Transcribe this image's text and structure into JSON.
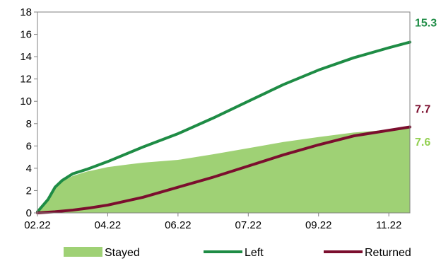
{
  "chart_data": {
    "type": "line",
    "x_tick_labels": [
      "02.22",
      "04.22",
      "06.22",
      "07.22",
      "09.22",
      "11.22"
    ],
    "y_ticks": [
      0,
      2,
      4,
      6,
      8,
      10,
      12,
      14,
      16,
      18
    ],
    "ylim": [
      0,
      18
    ],
    "x_range_months": [
      0,
      10.6
    ],
    "x_ticks_months": [
      0,
      2,
      4,
      6,
      8,
      10
    ],
    "series": [
      {
        "name": "Stayed",
        "kind": "area",
        "color": "#9FD175",
        "end_label": "7.6",
        "end_label_color": "#92D050",
        "points": [
          [
            0,
            0.1
          ],
          [
            0.3,
            1.2
          ],
          [
            0.5,
            2.2
          ],
          [
            0.7,
            2.8
          ],
          [
            1.0,
            3.3
          ],
          [
            1.4,
            3.7
          ],
          [
            2.0,
            4.1
          ],
          [
            2.6,
            4.35
          ],
          [
            3.0,
            4.5
          ],
          [
            4.0,
            4.75
          ],
          [
            5.0,
            5.25
          ],
          [
            6.0,
            5.8
          ],
          [
            7.0,
            6.35
          ],
          [
            8.0,
            6.8
          ],
          [
            9.0,
            7.2
          ],
          [
            10.0,
            7.45
          ],
          [
            10.6,
            7.6
          ]
        ]
      },
      {
        "name": "Left",
        "kind": "line",
        "color": "#1E8C45",
        "end_label": "15.3",
        "end_label_color": "#1E8C45",
        "points": [
          [
            0,
            0.1
          ],
          [
            0.3,
            1.2
          ],
          [
            0.5,
            2.3
          ],
          [
            0.7,
            2.9
          ],
          [
            1.0,
            3.5
          ],
          [
            1.4,
            3.9
          ],
          [
            2.0,
            4.6
          ],
          [
            3.0,
            5.9
          ],
          [
            4.0,
            7.1
          ],
          [
            5.0,
            8.5
          ],
          [
            6.0,
            10.0
          ],
          [
            7.0,
            11.5
          ],
          [
            8.0,
            12.8
          ],
          [
            9.0,
            13.9
          ],
          [
            10.0,
            14.8
          ],
          [
            10.6,
            15.3
          ]
        ]
      },
      {
        "name": "Returned",
        "kind": "line",
        "color": "#7B0E2E",
        "end_label": "7.7",
        "end_label_color": "#7B0E2E",
        "points": [
          [
            0,
            0.0
          ],
          [
            0.5,
            0.1
          ],
          [
            1.0,
            0.25
          ],
          [
            1.5,
            0.45
          ],
          [
            2.0,
            0.7
          ],
          [
            3.0,
            1.4
          ],
          [
            4.0,
            2.3
          ],
          [
            5.0,
            3.2
          ],
          [
            6.0,
            4.2
          ],
          [
            7.0,
            5.2
          ],
          [
            8.0,
            6.1
          ],
          [
            9.0,
            6.9
          ],
          [
            10.0,
            7.4
          ],
          [
            10.6,
            7.7
          ]
        ]
      }
    ],
    "legend_position": "bottom",
    "grid": false
  }
}
